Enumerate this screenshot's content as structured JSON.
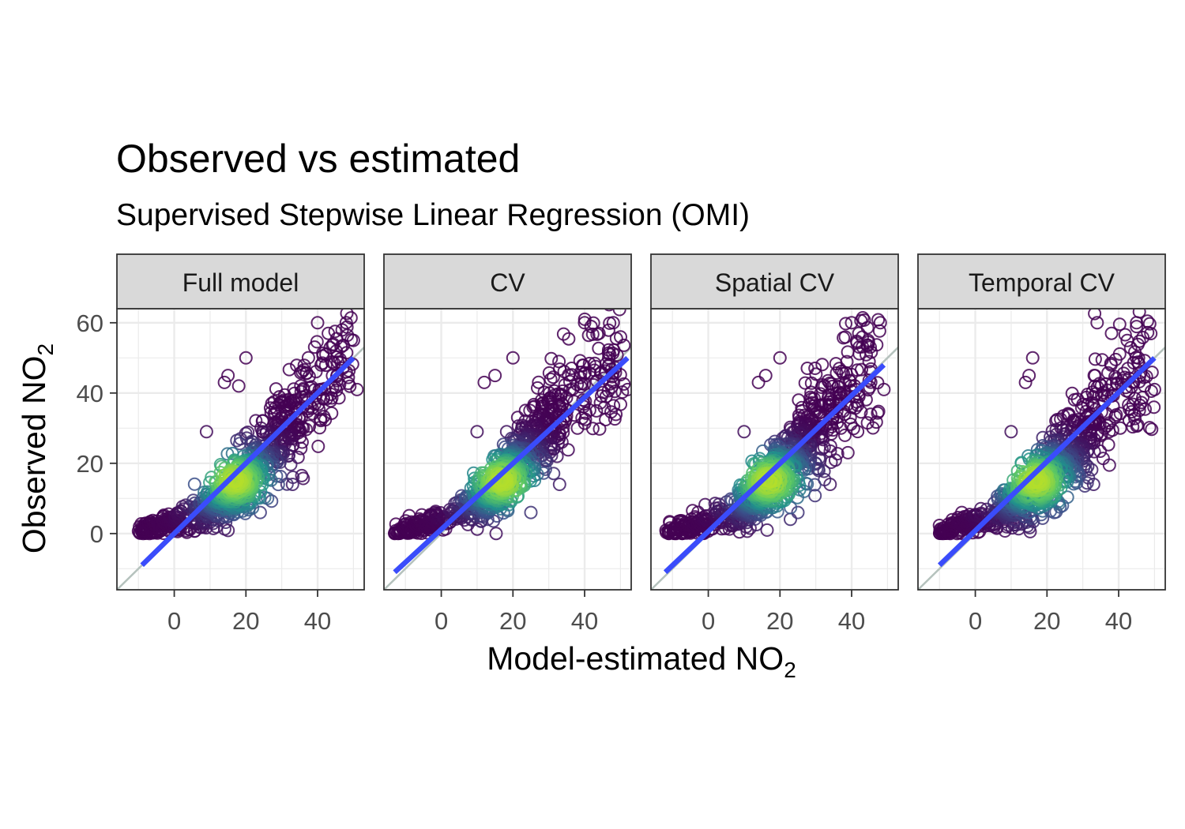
{
  "title": "Observed vs estimated",
  "subtitle": "Supervised Stepwise Linear Regression (OMI)",
  "chart_data": {
    "type": "scatter",
    "title": "Observed vs estimated",
    "subtitle": "Supervised Stepwise Linear Regression (OMI)",
    "xlabel": "Model-estimated NO",
    "xlabel_sub": "2",
    "ylabel": "Observed NO",
    "ylabel_sub": "2",
    "xlim": [
      -16,
      53
    ],
    "ylim": [
      -16,
      64
    ],
    "x_ticks": [
      0,
      20,
      40
    ],
    "y_ticks": [
      0,
      20,
      40,
      60
    ],
    "grid": true,
    "reference_line": "y = x",
    "colors": {
      "fit_line": "#3a4cfb",
      "reference_line": "#b5c2bd",
      "point_low_density": "#440154",
      "point_mid_density": "#21918c",
      "point_high_density": "#5ec962",
      "strip_background": "#d9d9d9",
      "grid": "#ebebeb"
    },
    "panels": [
      {
        "name": "Full model",
        "fit": {
          "x_start": -9,
          "y_start": -9,
          "x_end": 50,
          "y_end": 50
        },
        "anchors": [
          [
            -10,
            0
          ],
          [
            -5,
            2
          ],
          [
            0,
            3
          ],
          [
            5,
            5
          ],
          [
            10,
            8
          ],
          [
            15,
            12
          ],
          [
            20,
            16
          ],
          [
            25,
            22
          ],
          [
            30,
            28
          ],
          [
            35,
            34
          ],
          [
            40,
            40
          ],
          [
            45,
            46
          ],
          [
            50,
            52
          ]
        ],
        "outliers": [
          [
            14,
            43
          ],
          [
            15,
            45
          ],
          [
            20,
            50
          ],
          [
            18,
            42
          ],
          [
            40,
            60
          ],
          [
            43,
            57
          ],
          [
            48,
            60
          ],
          [
            50,
            55
          ],
          [
            51,
            41
          ],
          [
            33,
            14
          ],
          [
            24,
            6
          ],
          [
            36,
            30
          ],
          [
            9,
            29
          ]
        ]
      },
      {
        "name": "CV",
        "fit": {
          "x_start": -13,
          "y_start": -11,
          "x_end": 52,
          "y_end": 50
        },
        "anchors": [
          [
            -13,
            0
          ],
          [
            -8,
            1
          ],
          [
            -3,
            3
          ],
          [
            2,
            5
          ],
          [
            7,
            7
          ],
          [
            12,
            11
          ],
          [
            17,
            15
          ],
          [
            22,
            21
          ],
          [
            27,
            27
          ],
          [
            32,
            33
          ],
          [
            37,
            39
          ],
          [
            43,
            46
          ],
          [
            51,
            52
          ]
        ],
        "outliers": [
          [
            -13,
            0
          ],
          [
            -12,
            0
          ],
          [
            20,
            50
          ],
          [
            15,
            45
          ],
          [
            12,
            43
          ],
          [
            40,
            60
          ],
          [
            44,
            57
          ],
          [
            48,
            60
          ],
          [
            52,
            41
          ],
          [
            33,
            14
          ],
          [
            25,
            6
          ],
          [
            38,
            30
          ],
          [
            10,
            29
          ]
        ]
      },
      {
        "name": "Spatial CV",
        "fit": {
          "x_start": -12,
          "y_start": -11,
          "x_end": 49,
          "y_end": 48
        },
        "anchors": [
          [
            -12,
            0
          ],
          [
            -7,
            1
          ],
          [
            -2,
            3
          ],
          [
            3,
            5
          ],
          [
            8,
            7
          ],
          [
            13,
            11
          ],
          [
            18,
            15
          ],
          [
            23,
            21
          ],
          [
            28,
            27
          ],
          [
            33,
            33
          ],
          [
            38,
            39
          ],
          [
            43,
            46
          ],
          [
            48,
            52
          ]
        ],
        "outliers": [
          [
            -11,
            0
          ],
          [
            -9,
            0
          ],
          [
            20,
            50
          ],
          [
            16,
            45
          ],
          [
            14,
            43
          ],
          [
            40,
            60
          ],
          [
            42,
            57
          ],
          [
            48,
            60
          ],
          [
            49,
            41
          ],
          [
            34,
            14
          ],
          [
            25,
            6
          ],
          [
            37,
            30
          ],
          [
            10,
            29
          ]
        ]
      },
      {
        "name": "Temporal CV",
        "fit": {
          "x_start": -10,
          "y_start": -9,
          "x_end": 50,
          "y_end": 50
        },
        "anchors": [
          [
            -10,
            0
          ],
          [
            -5,
            2
          ],
          [
            0,
            3
          ],
          [
            5,
            5
          ],
          [
            10,
            8
          ],
          [
            15,
            12
          ],
          [
            20,
            16
          ],
          [
            25,
            22
          ],
          [
            30,
            28
          ],
          [
            35,
            34
          ],
          [
            40,
            40
          ],
          [
            45,
            46
          ],
          [
            50,
            52
          ]
        ],
        "outliers": [
          [
            -9,
            0
          ],
          [
            -7,
            0
          ],
          [
            16,
            50
          ],
          [
            15,
            45
          ],
          [
            14,
            43
          ],
          [
            34,
            60
          ],
          [
            38,
            57
          ],
          [
            45,
            60
          ],
          [
            50,
            41
          ],
          [
            33,
            14
          ],
          [
            22,
            6
          ],
          [
            36,
            30
          ],
          [
            10,
            29
          ]
        ]
      }
    ]
  }
}
